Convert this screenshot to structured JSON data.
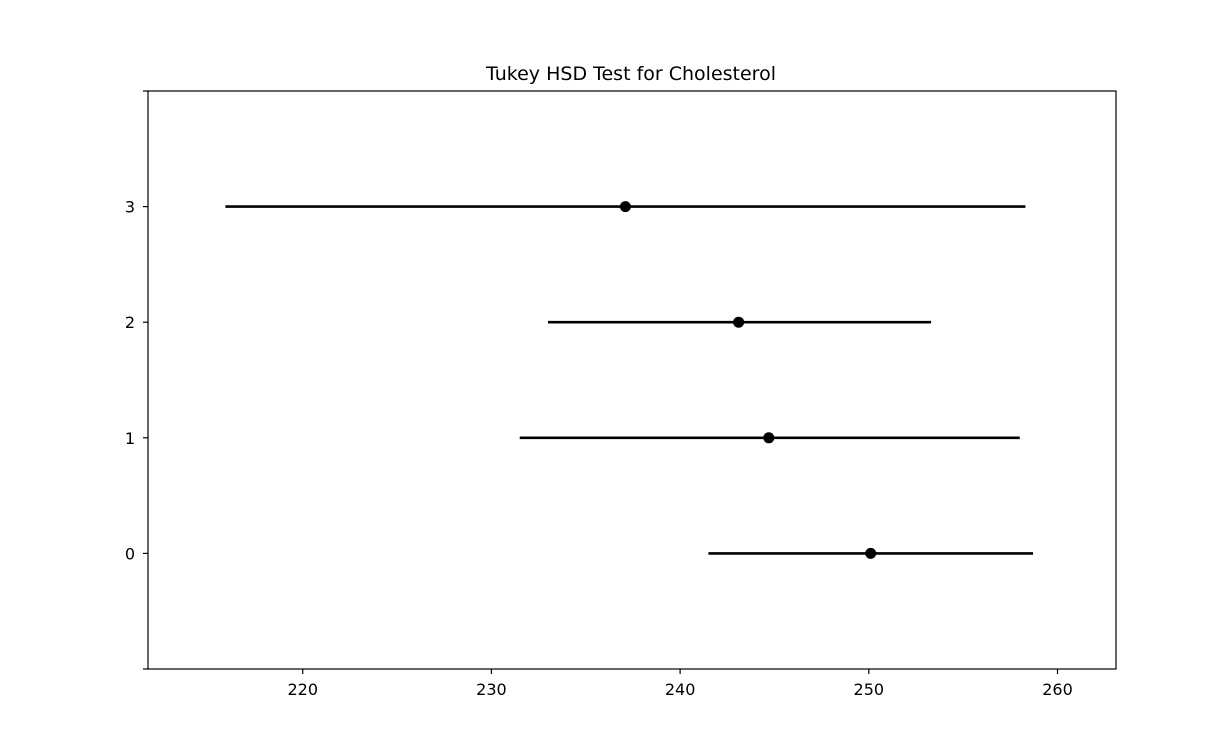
{
  "chart_data": {
    "type": "errorbar",
    "title": "Tukey HSD Test for Cholesterol",
    "xlabel": "",
    "ylabel": "",
    "xlim": [
      211.8,
      263.1
    ],
    "ylim": [
      -1,
      4
    ],
    "x_ticks": [
      220,
      230,
      240,
      250,
      260
    ],
    "y_ticks": [
      0,
      1,
      2,
      3
    ],
    "groups": [
      {
        "label": "0",
        "mean": 250.1,
        "lower": 241.5,
        "upper": 258.7
      },
      {
        "label": "1",
        "mean": 244.7,
        "lower": 231.5,
        "upper": 258.0
      },
      {
        "label": "2",
        "mean": 243.1,
        "lower": 233.0,
        "upper": 253.3
      },
      {
        "label": "3",
        "mean": 237.1,
        "lower": 215.9,
        "upper": 258.3
      }
    ],
    "grid": false,
    "legend": "none",
    "colors": {
      "line": "#000000",
      "marker": "#000000"
    }
  }
}
